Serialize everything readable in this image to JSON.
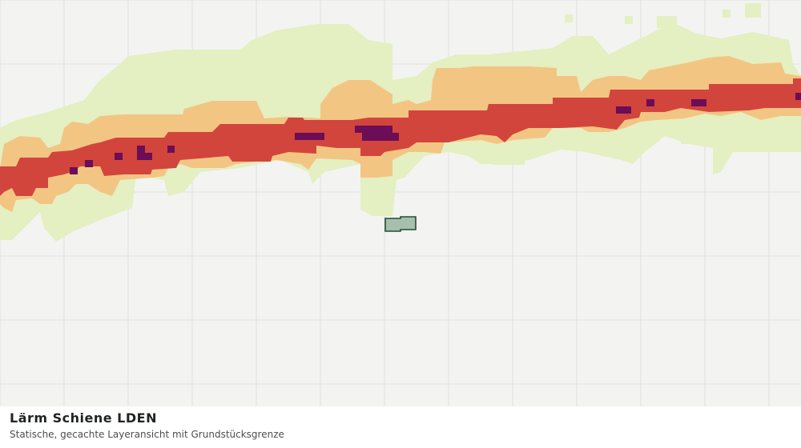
{
  "title": "Lärm Schiene LDEN",
  "subtitle": "Statische, gecachte Layeransicht mit Grundstücksgrenze",
  "colors": {
    "background": "#f3f4f1",
    "grid": "#dfe1dd",
    "noise_low": "#e4efc2",
    "noise_mid": "#f3c583",
    "noise_high": "#d2453d",
    "noise_very_high": "#6b0d57",
    "parcel_fill": "#a8bfae",
    "parcel_stroke": "#1f4f2c"
  },
  "layers": [
    {
      "name": "noise-band-low",
      "color_key": "noise_low"
    },
    {
      "name": "noise-band-mid",
      "color_key": "noise_mid"
    },
    {
      "name": "noise-band-high",
      "color_key": "noise_high"
    },
    {
      "name": "noise-band-very-high",
      "color_key": "noise_very_high"
    }
  ],
  "parcel": {
    "name": "property-boundary"
  }
}
